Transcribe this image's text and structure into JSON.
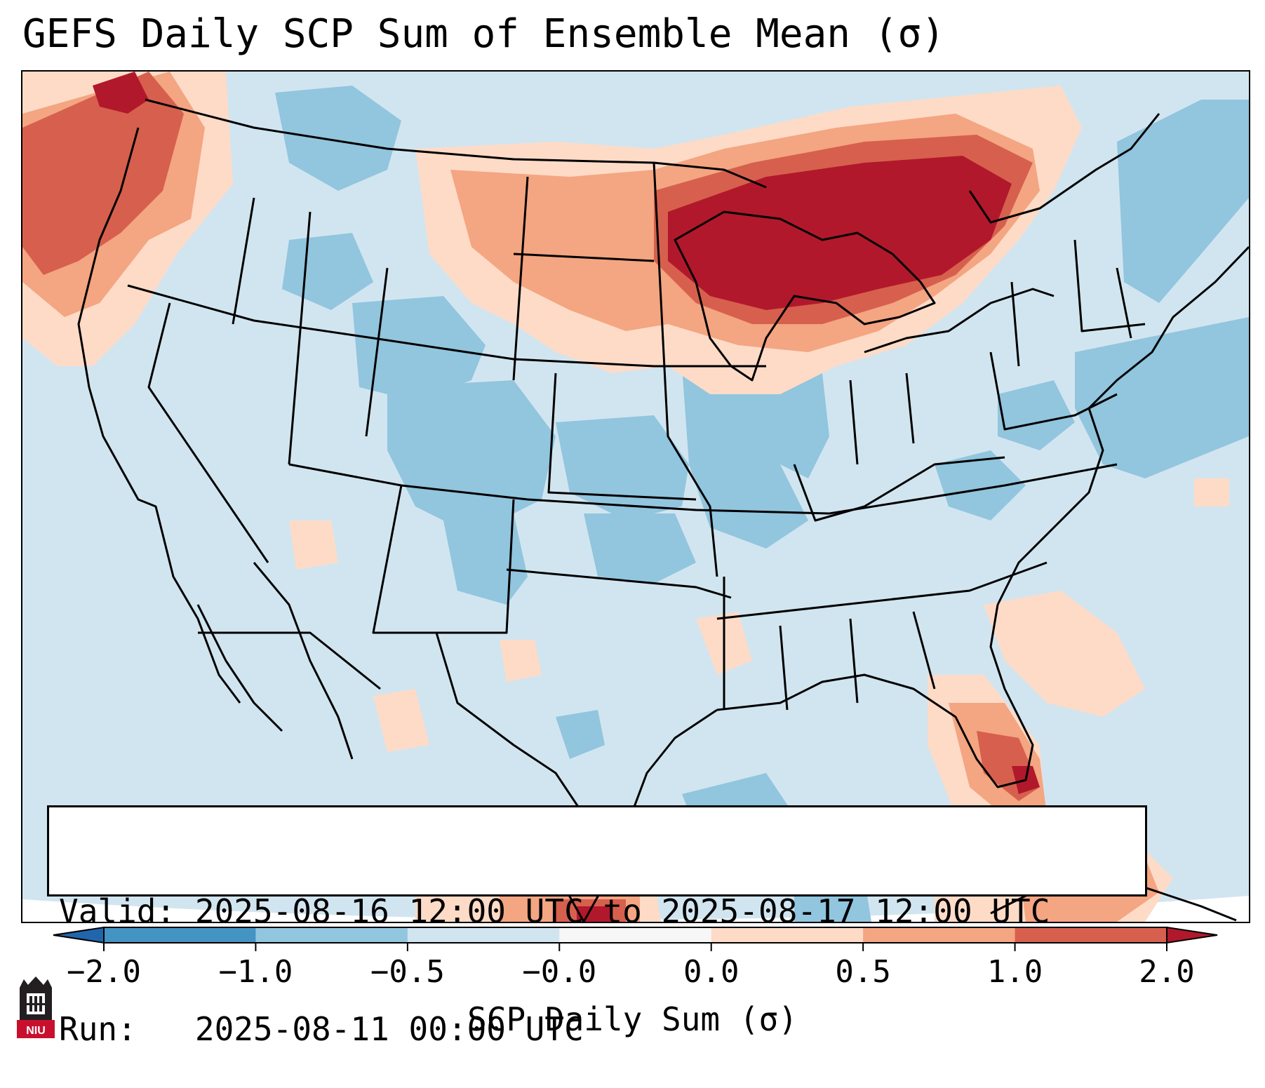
{
  "title": "GEFS Daily SCP Sum of Ensemble Mean (σ)",
  "info": {
    "valid_label": "Valid:",
    "valid_value": "2025-08-16 12:00 UTC to 2025-08-17 12:00 UTC",
    "run_label": "Run:",
    "run_value": "2025-08-11 00:00 UTC"
  },
  "colorbar": {
    "label": "SCP Daily Sum (σ)",
    "ticks": [
      "−2.0",
      "−1.0",
      "−0.5",
      "−0.0",
      "0.0",
      "0.5",
      "1.0",
      "2.0"
    ],
    "bins": [
      {
        "range": "below −2.0",
        "color": "#2166ac"
      },
      {
        "range": "−2.0 to −1.0",
        "color": "#4393c3"
      },
      {
        "range": "−1.0 to −0.5",
        "color": "#92c5de"
      },
      {
        "range": "−0.5 to −0.0",
        "color": "#d1e5f0"
      },
      {
        "range": "−0.0 to 0.0",
        "color": "#f7f7f7"
      },
      {
        "range": "0.0 to 0.5",
        "color": "#fddbc7"
      },
      {
        "range": "0.5 to 1.0",
        "color": "#f4a582"
      },
      {
        "range": "1.0 to 2.0",
        "color": "#d6604d"
      },
      {
        "range": "above 2.0",
        "color": "#b2182b"
      }
    ]
  },
  "map": {
    "background_color": "#d1e5f0",
    "region": "Continental United States"
  },
  "logo": {
    "text": "NIU",
    "color": "#c8102e"
  }
}
